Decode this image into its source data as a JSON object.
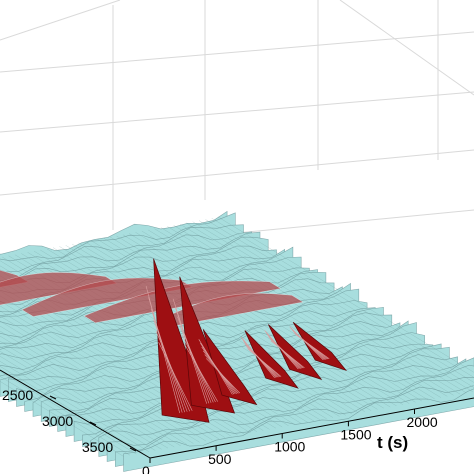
{
  "chart_data": {
    "type": "surface",
    "xlabel": "t (s)",
    "xticks": [
      0,
      500,
      1000,
      1500,
      2000
    ],
    "yticks": [
      2500,
      3000,
      3500
    ],
    "grid": true,
    "colors": {
      "surface_low": "#a8dede",
      "surface_mesh": "#6f9a9c",
      "peak": "#9e0f12",
      "ridge": "#b34a4e",
      "grid": "#d9d9d9"
    },
    "ridges": [
      {
        "t_start": 0,
        "t_end": 900,
        "row": 0.1,
        "height": 0.4
      },
      {
        "t_start": 200,
        "t_end": 1400,
        "row": 0.18,
        "height": 0.35
      },
      {
        "t_start": 600,
        "t_end": 1800,
        "row": 0.26,
        "height": 0.3
      },
      {
        "t_start": 900,
        "t_end": 2300,
        "row": 0.34,
        "height": 0.28
      },
      {
        "t_start": 1300,
        "t_end": 2300,
        "row": 0.42,
        "height": 0.25
      }
    ],
    "peaks": [
      {
        "t": 620,
        "row": 0.72,
        "height": 1.0
      },
      {
        "t": 860,
        "row": 0.7,
        "height": 0.8
      },
      {
        "t": 1080,
        "row": 0.68,
        "height": 0.35
      },
      {
        "t": 1480,
        "row": 0.64,
        "height": 0.22
      },
      {
        "t": 1700,
        "row": 0.62,
        "height": 0.2
      },
      {
        "t": 1930,
        "row": 0.6,
        "height": 0.15
      }
    ]
  }
}
